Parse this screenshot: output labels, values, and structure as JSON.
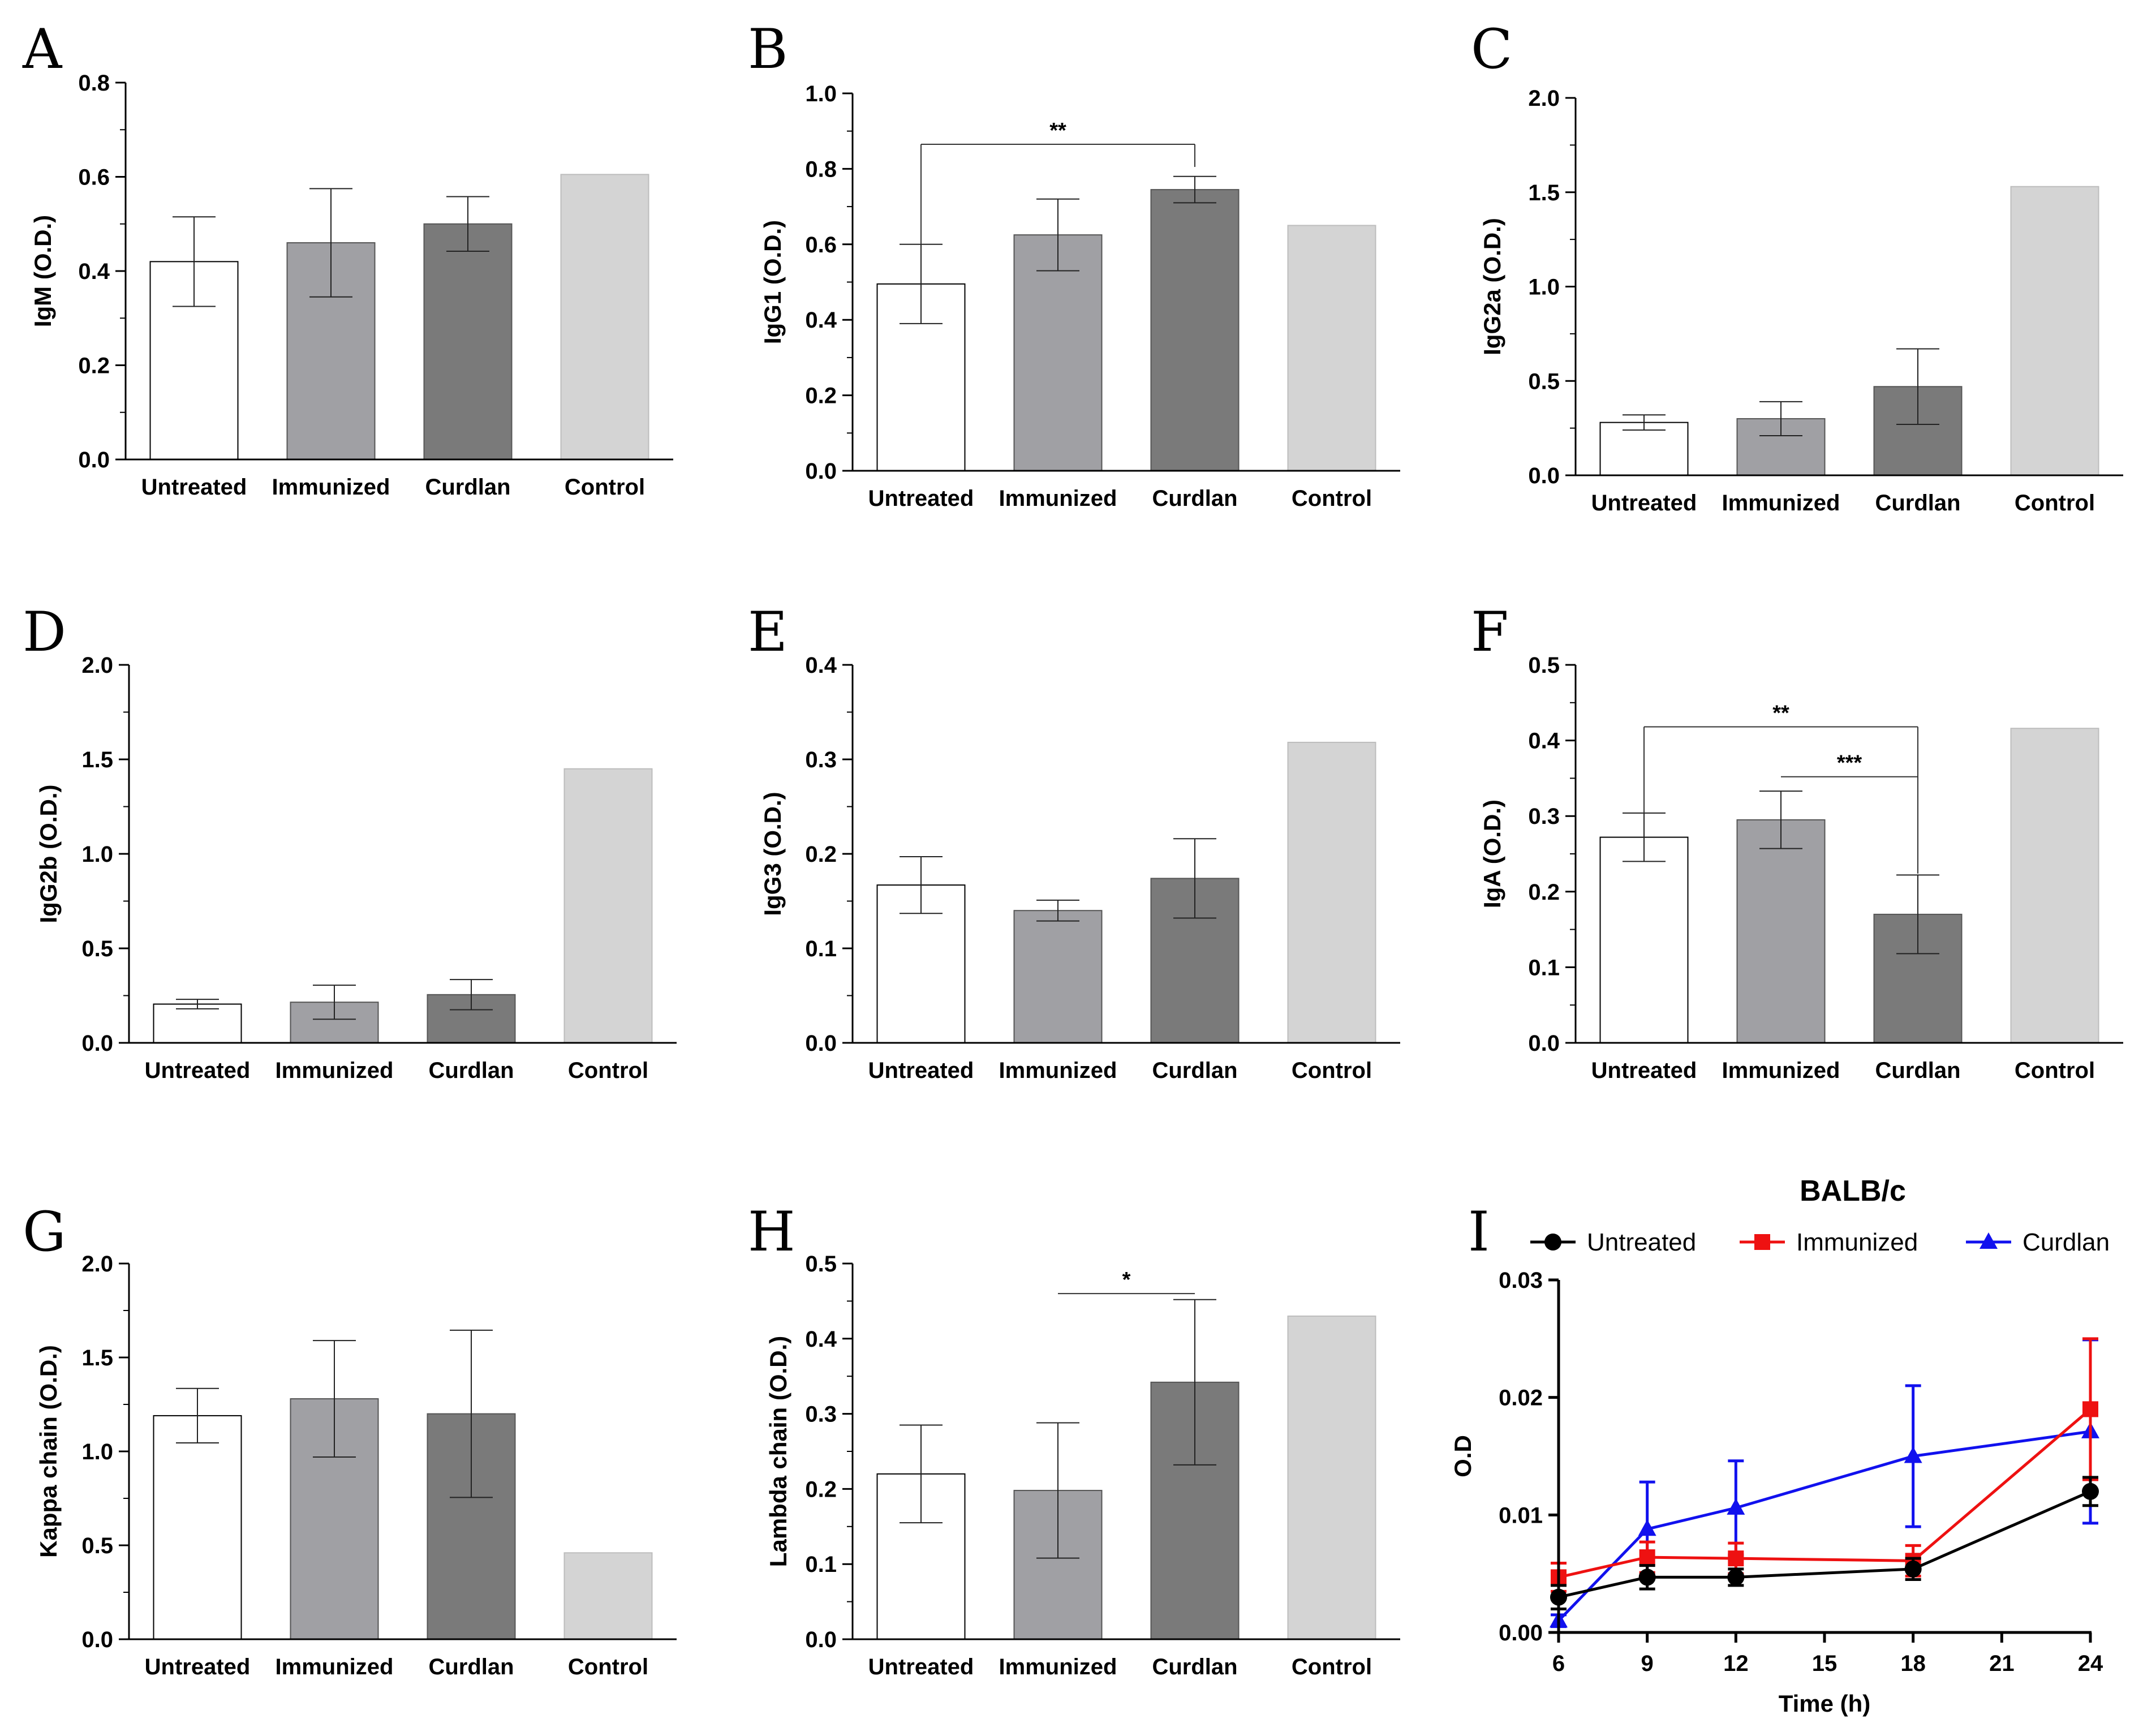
{
  "colors": {
    "Untreated": "#ffffff",
    "Immunized": "#a0a0a4",
    "Curdlan": "#7a7a7a",
    "Control": "#d4d4d4",
    "line_untreated": "#000000",
    "line_immunized": "#ee1111",
    "line_curdlan": "#1111ee"
  },
  "chart_data": [
    {
      "panel": "A",
      "type": "bar",
      "ylabel": "IgM (O.D.)",
      "categories": [
        "Untreated",
        "Immunized",
        "Curdlan",
        "Control"
      ],
      "values": [
        0.42,
        0.46,
        0.5,
        0.605
      ],
      "errors": [
        0.095,
        0.115,
        0.058,
        null
      ],
      "ylim": [
        0,
        0.8
      ],
      "yticks": [
        "0.0",
        "0.2",
        "0.4",
        "0.6",
        "0.8"
      ],
      "significance": []
    },
    {
      "panel": "B",
      "type": "bar",
      "ylabel": "IgG1 (O.D.)",
      "categories": [
        "Untreated",
        "Immunized",
        "Curdlan",
        "Control"
      ],
      "values": [
        0.495,
        0.625,
        0.745,
        0.65
      ],
      "errors": [
        0.105,
        0.095,
        0.035,
        null
      ],
      "ylim": [
        0,
        1.0
      ],
      "yticks": [
        "0.0",
        "0.2",
        "0.4",
        "0.6",
        "0.8",
        "1.0"
      ],
      "significance": [
        {
          "from": 0,
          "to": 2,
          "label": "**",
          "y": 0.865,
          "drop_to": 0.6
        }
      ]
    },
    {
      "panel": "C",
      "type": "bar",
      "ylabel": "IgG2a (O.D.)",
      "categories": [
        "Untreated",
        "Immunized",
        "Curdlan",
        "Control"
      ],
      "values": [
        0.28,
        0.3,
        0.47,
        1.53
      ],
      "errors": [
        0.04,
        0.09,
        0.2,
        null
      ],
      "ylim": [
        0,
        2.0
      ],
      "yticks": [
        "0.0",
        "0.5",
        "1.0",
        "1.5",
        "2.0"
      ],
      "significance": []
    },
    {
      "panel": "D",
      "type": "bar",
      "ylabel": "IgG2b (O.D.)",
      "categories": [
        "Untreated",
        "Immunized",
        "Curdlan",
        "Control"
      ],
      "values": [
        0.205,
        0.215,
        0.255,
        1.45
      ],
      "errors": [
        0.025,
        0.09,
        0.08,
        null
      ],
      "ylim": [
        0,
        2.0
      ],
      "yticks": [
        "0.0",
        "0.5",
        "1.0",
        "1.5",
        "2.0"
      ],
      "significance": []
    },
    {
      "panel": "E",
      "type": "bar",
      "ylabel": "IgG3 (O.D.)",
      "categories": [
        "Untreated",
        "Immunized",
        "Curdlan",
        "Control"
      ],
      "values": [
        0.167,
        0.14,
        0.174,
        0.318
      ],
      "errors": [
        0.03,
        0.011,
        0.042,
        null
      ],
      "ylim": [
        0,
        0.4
      ],
      "yticks": [
        "0.0",
        "0.1",
        "0.2",
        "0.3",
        "0.4"
      ],
      "significance": []
    },
    {
      "panel": "F",
      "type": "bar",
      "ylabel": "IgA (O.D.)",
      "categories": [
        "Untreated",
        "Immunized",
        "Curdlan",
        "Control"
      ],
      "values": [
        0.272,
        0.295,
        0.17,
        0.416
      ],
      "errors": [
        0.032,
        0.038,
        0.052,
        null
      ],
      "ylim": [
        0,
        0.5
      ],
      "yticks": [
        "0.0",
        "0.1",
        "0.2",
        "0.3",
        "0.4",
        "0.5"
      ],
      "significance": [
        {
          "from": 0,
          "to": 2,
          "label": "**",
          "y": 0.418,
          "drop_to": 0.304,
          "drop_end": 0.224
        },
        {
          "from": 1,
          "to": 2,
          "label": "***",
          "y": 0.352,
          "drop_to": null,
          "drop_end": 0.224
        }
      ]
    },
    {
      "panel": "G",
      "type": "bar",
      "ylabel": "Kappa chain (O.D.)",
      "categories": [
        "Untreated",
        "Immunized",
        "Curdlan",
        "Control"
      ],
      "values": [
        1.19,
        1.28,
        1.2,
        0.46
      ],
      "errors": [
        0.145,
        0.31,
        0.445,
        null
      ],
      "ylim": [
        0,
        2.0
      ],
      "yticks": [
        "0.0",
        "0.5",
        "1.0",
        "1.5",
        "2.0"
      ],
      "significance": []
    },
    {
      "panel": "H",
      "type": "bar",
      "ylabel": "Lambda chain (O.D.)",
      "categories": [
        "Untreated",
        "Immunized",
        "Curdlan",
        "Control"
      ],
      "values": [
        0.22,
        0.198,
        0.342,
        0.43
      ],
      "errors": [
        0.065,
        0.09,
        0.11,
        null
      ],
      "ylim": [
        0,
        0.5
      ],
      "yticks": [
        "0.0",
        "0.1",
        "0.2",
        "0.3",
        "0.4",
        "0.5"
      ],
      "significance": [
        {
          "from": 1,
          "to": 2,
          "label": "*",
          "y": 0.46,
          "drop_to": null
        }
      ]
    },
    {
      "panel": "I",
      "type": "line",
      "title": "BALB/c",
      "xlabel": "Time (h)",
      "ylabel": "O.D",
      "x": [
        6,
        9,
        12,
        18,
        24
      ],
      "xlim": [
        6,
        24
      ],
      "xticks": [
        "6",
        "9",
        "12",
        "15",
        "18",
        "21",
        "24"
      ],
      "ylim": [
        0,
        0.03
      ],
      "yticks": [
        "0.00",
        "0.01",
        "0.02",
        "0.03"
      ],
      "series": [
        {
          "name": "Untreated",
          "marker": "circle",
          "values": [
            0.003,
            0.0047,
            0.0047,
            0.0054,
            0.012
          ],
          "errors": [
            0.001,
            0.001,
            0.0007,
            0.0009,
            0.0012
          ]
        },
        {
          "name": "Immunized",
          "marker": "square",
          "values": [
            0.0047,
            0.0064,
            0.0063,
            0.0061,
            0.019
          ],
          "errors": [
            0.0012,
            0.0013,
            0.0013,
            0.0013,
            0.006
          ]
        },
        {
          "name": "Curdlan",
          "marker": "triangle",
          "values": [
            0.001,
            0.0088,
            0.0106,
            0.015,
            0.0171
          ],
          "errors": [
            0.0005,
            0.004,
            0.004,
            0.006,
            0.0078
          ]
        }
      ]
    }
  ]
}
